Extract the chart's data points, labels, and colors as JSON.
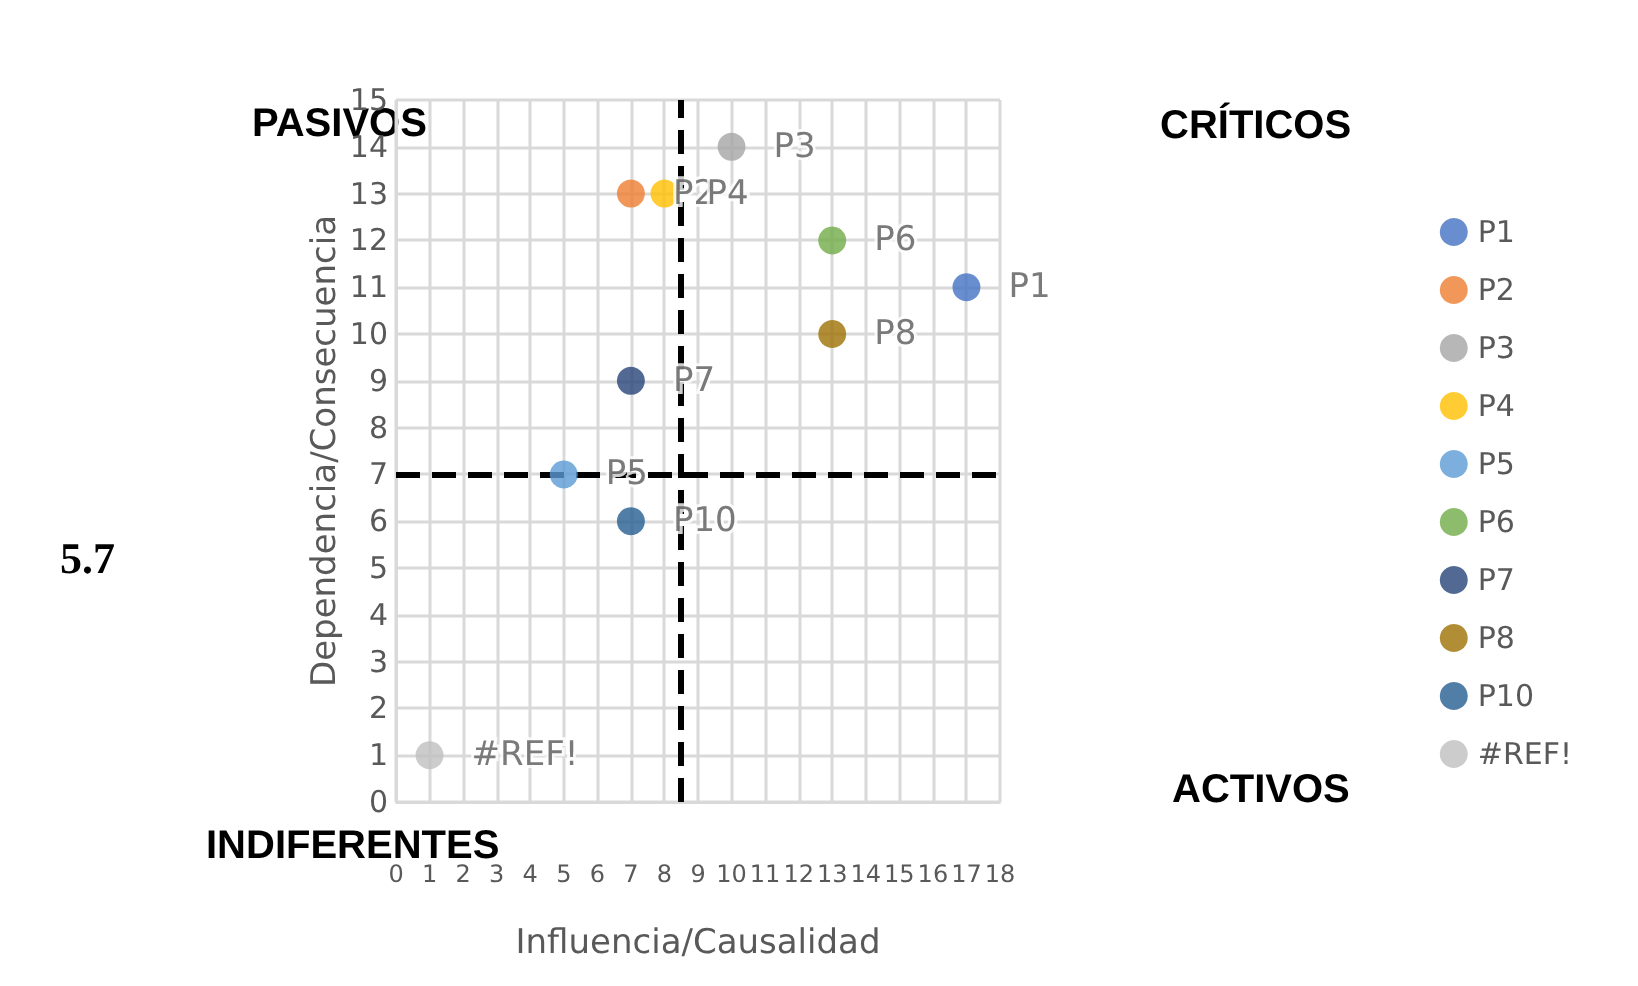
{
  "chart_data": {
    "type": "scatter",
    "xlabel": "Influencia/Causalidad",
    "ylabel": "Dependencia/Consecuencia",
    "xlim": [
      0,
      18
    ],
    "xticks": [
      0,
      1,
      2,
      3,
      4,
      5,
      6,
      7,
      8,
      9,
      10,
      11,
      12,
      13,
      14,
      15,
      16,
      17,
      18
    ],
    "ylim": [
      0,
      15
    ],
    "yticks": [
      0,
      1,
      2,
      3,
      4,
      5,
      6,
      7,
      8,
      9,
      10,
      11,
      12,
      13,
      14,
      15
    ],
    "grid": true,
    "marker": "circle",
    "legend": "right",
    "series": [
      {
        "name": "P1",
        "color": "#4472c4",
        "x": [
          17
        ],
        "values": [
          11
        ]
      },
      {
        "name": "P2",
        "color": "#ed7d31",
        "x": [
          7
        ],
        "values": [
          13
        ]
      },
      {
        "name": "P3",
        "color": "#a5a5a5",
        "x": [
          10
        ],
        "values": [
          14
        ]
      },
      {
        "name": "P4",
        "color": "#ffc000",
        "x": [
          8
        ],
        "values": [
          13
        ]
      },
      {
        "name": "P5",
        "color": "#5b9bd5",
        "x": [
          5
        ],
        "values": [
          7
        ]
      },
      {
        "name": "P6",
        "color": "#70ad47",
        "x": [
          13
        ],
        "values": [
          12
        ]
      },
      {
        "name": "P7",
        "color": "#264478",
        "x": [
          7
        ],
        "values": [
          9
        ]
      },
      {
        "name": "P8",
        "color": "#9e7003",
        "x": [
          13
        ],
        "values": [
          10
        ]
      },
      {
        "name": "P10",
        "color": "#255e91",
        "x": [
          7
        ],
        "values": [
          6
        ]
      },
      {
        "name": "#REF!",
        "color": "#bfbfbf",
        "x": [
          1
        ],
        "values": [
          1
        ]
      }
    ],
    "ref_lines": [
      {
        "axis": "x",
        "value": 8.5,
        "line_style": "dashed",
        "color": "#000000"
      },
      {
        "axis": "y",
        "value": 7,
        "line_style": "dashed",
        "color": "#000000"
      }
    ],
    "annotations": [
      "PASIVOS",
      "CRÍTICOS",
      "INDIFERENTES",
      "ACTIVOS",
      "5.7"
    ]
  }
}
